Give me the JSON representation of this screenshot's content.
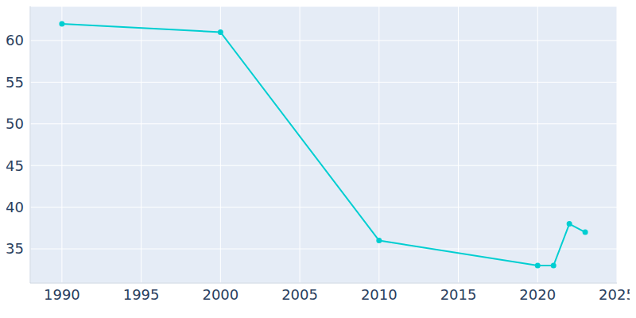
{
  "chart_data": {
    "type": "line",
    "x": [
      1990,
      2000,
      2010,
      2020,
      2021,
      2022,
      2023
    ],
    "values": [
      62,
      61,
      36,
      33,
      33,
      38,
      37
    ],
    "color": "#00ced1",
    "xlim": [
      1988,
      2025
    ],
    "xticks": [
      1990,
      1995,
      2000,
      2005,
      2010,
      2015,
      2020,
      2025
    ],
    "ylim": [
      30.9,
      64.1
    ],
    "yticks": [
      35,
      40,
      45,
      50,
      55,
      60
    ],
    "grid": true,
    "marker": "circle"
  }
}
